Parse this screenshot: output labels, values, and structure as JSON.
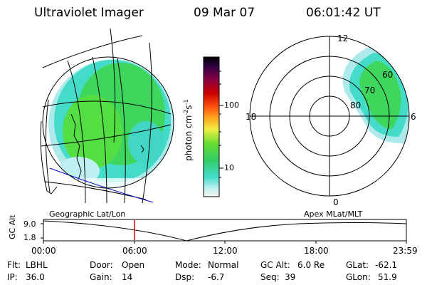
{
  "header": {
    "instrument": "Ultraviolet Imager",
    "date": "09 Mar 07",
    "time": "06:01:42 UT"
  },
  "colorbar": {
    "unit_label": "photon cm",
    "unit_exp1": "-2",
    "unit_mid": "s",
    "unit_exp2": "-1",
    "ticks": [
      "100",
      "10"
    ]
  },
  "polar": {
    "mlt_labels": [
      "12",
      "18",
      "6",
      "0"
    ],
    "mlat_labels": [
      "60",
      "70",
      "80"
    ]
  },
  "map_labels": {
    "left": "Geographic Lat/Lon",
    "right": "Apex MLat/MLT"
  },
  "timeline": {
    "ylabel": "GC Alt",
    "y_ticks": [
      "9.0",
      "1.8"
    ],
    "x_ticks": [
      "00:00",
      "06:00",
      "12:00",
      "18:00",
      "23:59"
    ]
  },
  "info": {
    "flt_label": "Flt:",
    "flt_value": "LBHL",
    "ip_label": "IP:",
    "ip_value": "36.0",
    "door_label": "Door:",
    "door_value": "Open",
    "gain_label": "Gain:",
    "gain_value": "14",
    "mode_label": "Mode:",
    "mode_value": "Normal",
    "dsp_label": "Dsp:",
    "dsp_value": "-6.7",
    "gcalt_label": "GC Alt:",
    "gcalt_value": "6.0 Re",
    "seq_label": "Seq:",
    "seq_value": "39",
    "glat_label": "GLat:",
    "glat_value": "-62.1",
    "glon_label": "GLon:",
    "glon_value": "51.9"
  },
  "colors": {
    "aurora_main": "#33dd55",
    "aurora_cyan": "#33ddcc",
    "aurora_light": "#aaeeee",
    "marker_red": "#dd0000",
    "coast_blue": "#0000cc"
  }
}
